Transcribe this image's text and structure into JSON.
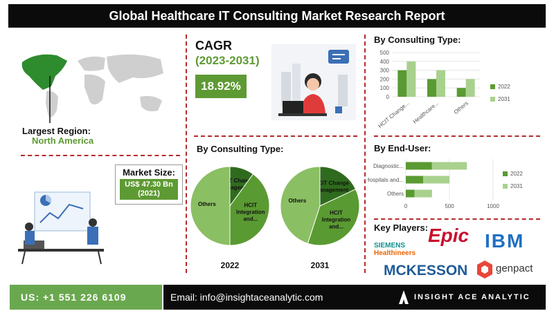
{
  "header": {
    "title": "Global Healthcare IT Consulting Market Research Report"
  },
  "region": {
    "label": "Largest Region:",
    "value": "North America"
  },
  "cagr": {
    "title": "CAGR",
    "period": "(2023-2031)",
    "value": "18.92%"
  },
  "market_size": {
    "label": "Market Size:",
    "line1": "US$ 47.30 Bn",
    "line2": "(2021)"
  },
  "pies_title": "By Consulting Type:",
  "bar_title": "By Consulting Type:",
  "enduser_title": "By End-User:",
  "key_players": {
    "title": "Key Players:",
    "logos": [
      "SIEMENS",
      "Healthineers",
      "Epic",
      "IBM",
      "MCKESSON",
      "genpact"
    ]
  },
  "footer": {
    "phone": "US: +1 551 226 6109",
    "email": "Email: info@insightaceanalytic.com",
    "brand": "INSIGHT ACE ANALYTIC"
  },
  "colors": {
    "dark_green": "#5a9a32",
    "light_green": "#a9d18e",
    "accent_red": "#b52a2a"
  },
  "chart_data": [
    {
      "type": "bar",
      "title": "By Consulting Type:",
      "categories": [
        "HCIT Change...",
        "Healthcare...",
        "Others"
      ],
      "series": [
        {
          "name": "2022",
          "values": [
            300,
            200,
            100
          ]
        },
        {
          "name": "2031",
          "values": [
            400,
            300,
            200
          ]
        }
      ],
      "ylim": [
        0,
        500
      ],
      "yticks": [
        "500",
        "400",
        "300",
        "200",
        "100",
        "0"
      ],
      "legend": "right"
    },
    {
      "type": "bar",
      "orientation": "horizontal",
      "title": "By End-User:",
      "categories": [
        "Diagnostic...",
        "Hospitals and...",
        "Others"
      ],
      "series": [
        {
          "name": "2022",
          "values": [
            300,
            200,
            100
          ]
        },
        {
          "name": "2031",
          "values": [
            400,
            300,
            200
          ]
        }
      ],
      "xlim": [
        0,
        1000
      ],
      "xticks": [
        "0",
        "500",
        "1000"
      ],
      "legend": "right"
    },
    {
      "type": "pie",
      "title": "2022",
      "labels": [
        "HCIT Change Management",
        "HCIT Integration and...",
        "Others"
      ],
      "values": [
        10,
        40,
        50
      ]
    },
    {
      "type": "pie",
      "title": "2031",
      "labels": [
        "HCIT Change Management",
        "HCIT Integration and...",
        "Others"
      ],
      "values": [
        18,
        37,
        45
      ]
    }
  ]
}
